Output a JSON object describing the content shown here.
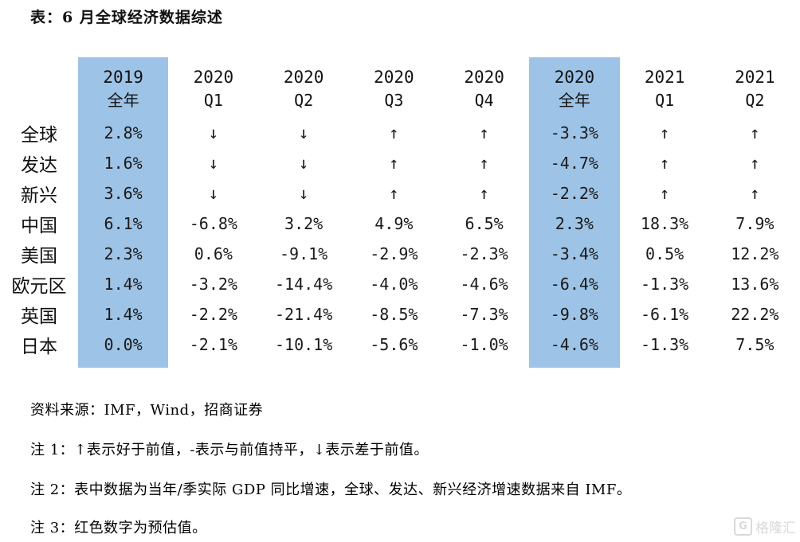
{
  "title": "表：6 月全球经济数据综述",
  "colors": {
    "highlight_column": "#9dc3e6",
    "table_text": "#1a1a1a",
    "watermark": "#d9d9d9"
  },
  "chart_data": {
    "type": "table",
    "title": "表：6 月全球经济数据综述",
    "columns": [
      {
        "year": "2019",
        "period": "全年",
        "highlight": true
      },
      {
        "year": "2020",
        "period": "Q1",
        "highlight": false
      },
      {
        "year": "2020",
        "period": "Q2",
        "highlight": false
      },
      {
        "year": "2020",
        "period": "Q3",
        "highlight": false
      },
      {
        "year": "2020",
        "period": "Q4",
        "highlight": false
      },
      {
        "year": "2020",
        "period": "全年",
        "highlight": true
      },
      {
        "year": "2021",
        "period": "Q1",
        "highlight": false
      },
      {
        "year": "2021",
        "period": "Q2",
        "highlight": false
      }
    ],
    "rows": [
      {
        "label": "全球",
        "values": [
          "2.8%",
          "↓",
          "↓",
          "↑",
          "↑",
          "-3.3%",
          "↑",
          "↑"
        ]
      },
      {
        "label": "发达",
        "values": [
          "1.6%",
          "↓",
          "↓",
          "↑",
          "↑",
          "-4.7%",
          "↑",
          "↑"
        ]
      },
      {
        "label": "新兴",
        "values": [
          "3.6%",
          "↓",
          "↓",
          "↑",
          "↑",
          "-2.2%",
          "↑",
          "↑"
        ]
      },
      {
        "label": "中国",
        "values": [
          "6.1%",
          "-6.8%",
          "3.2%",
          "4.9%",
          "6.5%",
          "2.3%",
          "18.3%",
          "7.9%"
        ]
      },
      {
        "label": "美国",
        "values": [
          "2.3%",
          "0.6%",
          "-9.1%",
          "-2.9%",
          "-2.3%",
          "-3.4%",
          "0.5%",
          "12.2%"
        ]
      },
      {
        "label": "欧元区",
        "values": [
          "1.4%",
          "-3.2%",
          "-14.4%",
          "-4.0%",
          "-4.6%",
          "-6.4%",
          "-1.3%",
          "13.6%"
        ]
      },
      {
        "label": "英国",
        "values": [
          "1.4%",
          "-2.2%",
          "-21.4%",
          "-8.5%",
          "-7.3%",
          "-9.8%",
          "-6.1%",
          "22.2%"
        ]
      },
      {
        "label": "日本",
        "values": [
          "0.0%",
          "-2.1%",
          "-10.1%",
          "-5.6%",
          "-1.0%",
          "-4.6%",
          "-1.3%",
          "7.5%"
        ]
      }
    ]
  },
  "notes": {
    "source": "资料来源：IMF，Wind，招商证券",
    "note1": "注 1：↑表示好于前值，-表示与前值持平，↓表示差于前值。",
    "note2": "注 2：表中数据为当年/季实际 GDP 同比增速，全球、发达、新兴经济增速数据来自 IMF。",
    "note3": "注 3：红色数字为预估值。"
  },
  "watermark": {
    "logo_letter": "G",
    "text": "格隆汇"
  }
}
